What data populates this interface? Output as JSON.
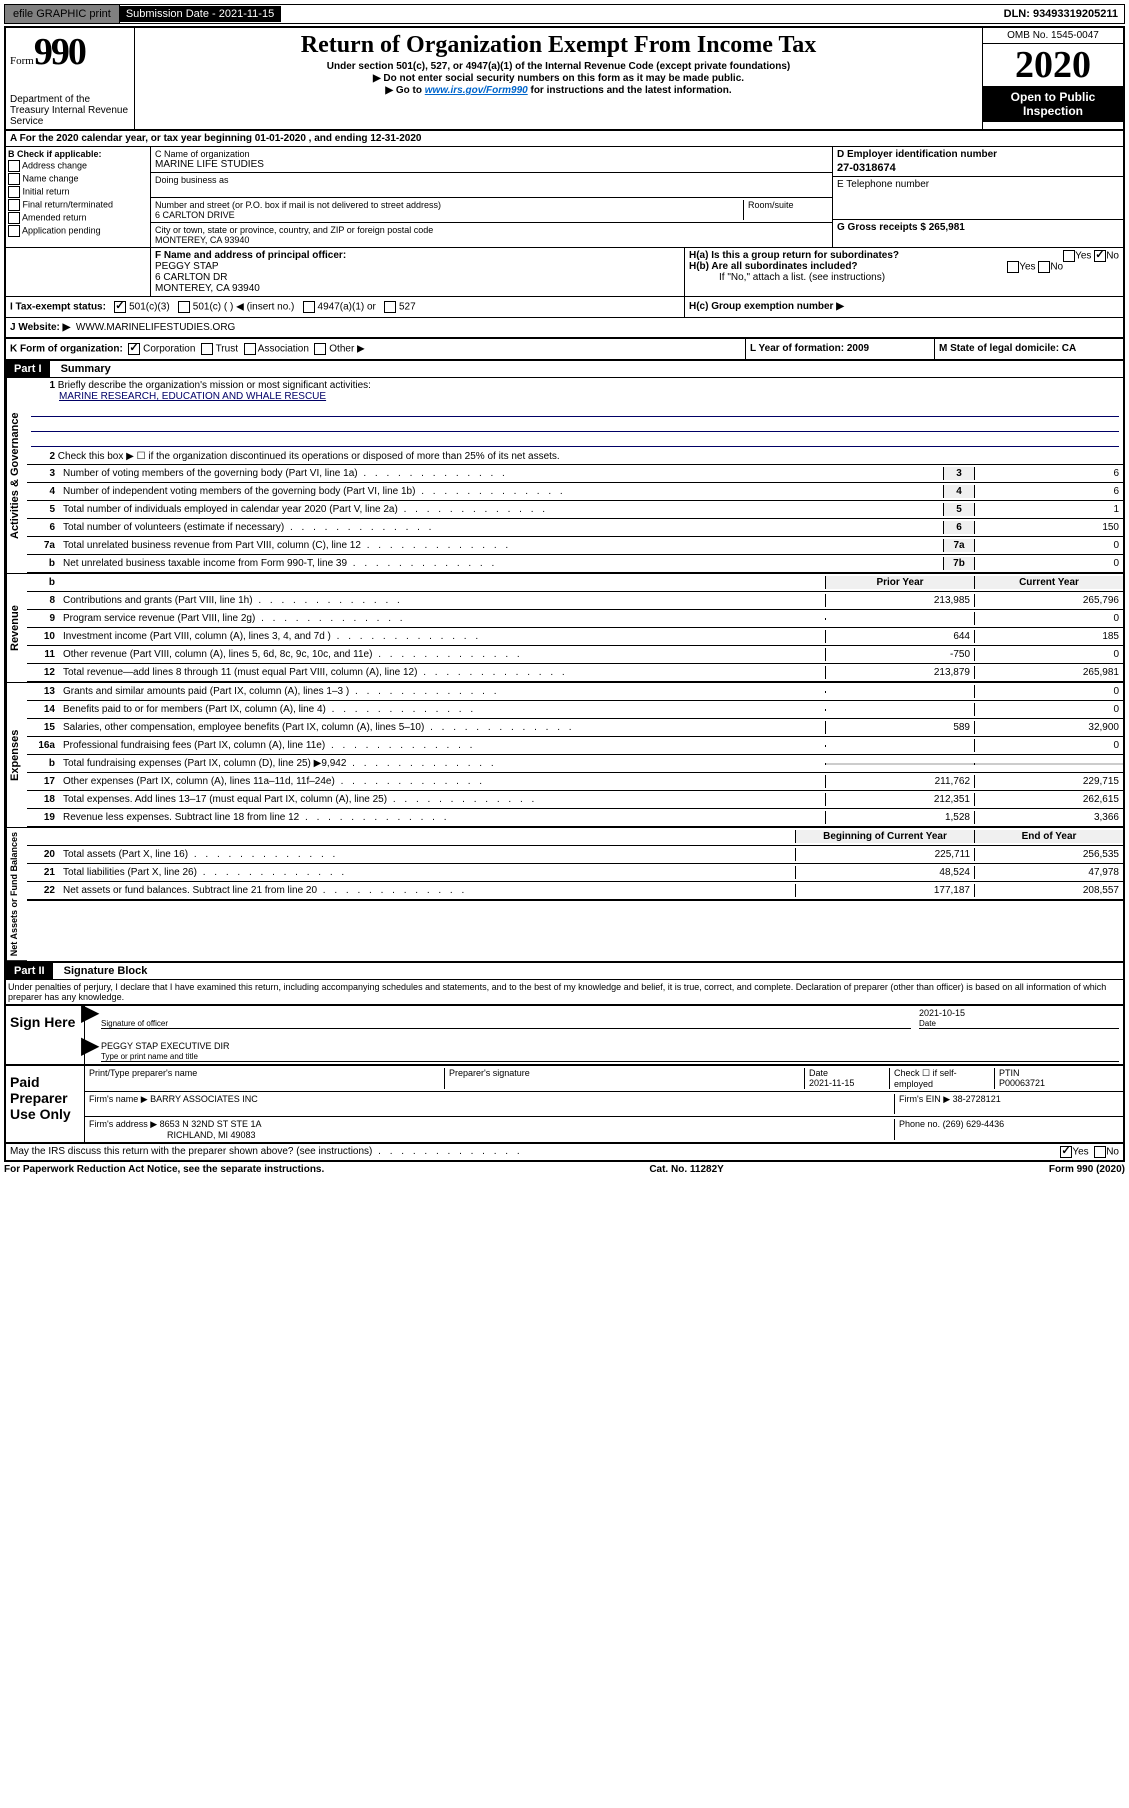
{
  "top_bar": {
    "efile": "efile GRAPHIC print",
    "submission": "Submission Date - 2021-11-15",
    "dln": "DLN: 93493319205211"
  },
  "header": {
    "form_label": "Form",
    "form_number": "990",
    "dept": "Department of the Treasury Internal Revenue Service",
    "title": "Return of Organization Exempt From Income Tax",
    "subtitle": "Under section 501(c), 527, or 4947(a)(1) of the Internal Revenue Code (except private foundations)",
    "warn1": "▶ Do not enter social security numbers on this form as it may be made public.",
    "warn2_prefix": "▶ Go to ",
    "warn2_link": "www.irs.gov/Form990",
    "warn2_suffix": " for instructions and the latest information.",
    "omb": "OMB No. 1545-0047",
    "year": "2020",
    "public": "Open to Public Inspection"
  },
  "section_a": "A For the 2020 calendar year, or tax year beginning 01-01-2020   , and ending 12-31-2020",
  "block_b": {
    "label": "B Check if applicable:",
    "opts": [
      "Address change",
      "Name change",
      "Initial return",
      "Final return/terminated",
      "Amended return",
      "Application pending"
    ]
  },
  "block_c": {
    "name_label": "C Name of organization",
    "name": "MARINE LIFE STUDIES",
    "dba_label": "Doing business as",
    "addr_label": "Number and street (or P.O. box if mail is not delivered to street address)",
    "addr": "6 CARLTON DRIVE",
    "room_label": "Room/suite",
    "city_label": "City or town, state or province, country, and ZIP or foreign postal code",
    "city": "MONTEREY, CA  93940"
  },
  "block_d": {
    "label": "D Employer identification number",
    "value": "27-0318674"
  },
  "block_e": {
    "label": "E Telephone number"
  },
  "block_g": {
    "label": "G Gross receipts $ 265,981"
  },
  "block_f": {
    "label": "F  Name and address of principal officer:",
    "name": "PEGGY STAP",
    "addr1": "6 CARLTON DR",
    "addr2": "MONTEREY, CA  93940"
  },
  "block_h": {
    "ha": "H(a)  Is this a group return for subordinates?",
    "hb": "H(b)  Are all subordinates included?",
    "hb_note": "If \"No,\" attach a list. (see instructions)",
    "hc": "H(c)  Group exemption number ▶"
  },
  "block_i": {
    "label": "I  Tax-exempt status:",
    "o1": "501(c)(3)",
    "o2": "501(c) (   ) ◀ (insert no.)",
    "o3": "4947(a)(1) or",
    "o4": "527"
  },
  "block_j": {
    "label": "J  Website: ▶",
    "value": "WWW.MARINELIFESTUDIES.ORG"
  },
  "block_k": {
    "label": "K Form of organization:",
    "opts": [
      "Corporation",
      "Trust",
      "Association",
      "Other ▶"
    ]
  },
  "block_l": {
    "label": "L Year of formation: 2009"
  },
  "block_m": {
    "label": "M State of legal domicile: CA"
  },
  "part1": {
    "header": "Part I",
    "title": "Summary",
    "line1_label": "Briefly describe the organization's mission or most significant activities:",
    "line1_value": "MARINE RESEARCH, EDUCATION AND WHALE RESCUE",
    "line2": "Check this box ▶ ☐  if the organization discontinued its operations or disposed of more than 25% of its net assets.",
    "lines_gov": [
      {
        "n": "3",
        "t": "Number of voting members of the governing body (Part VI, line 1a)",
        "c": "3",
        "v": "6"
      },
      {
        "n": "4",
        "t": "Number of independent voting members of the governing body (Part VI, line 1b)",
        "c": "4",
        "v": "6"
      },
      {
        "n": "5",
        "t": "Total number of individuals employed in calendar year 2020 (Part V, line 2a)",
        "c": "5",
        "v": "1"
      },
      {
        "n": "6",
        "t": "Total number of volunteers (estimate if necessary)",
        "c": "6",
        "v": "150"
      },
      {
        "n": "7a",
        "t": "Total unrelated business revenue from Part VIII, column (C), line 12",
        "c": "7a",
        "v": "0"
      },
      {
        "n": "b",
        "t": "Net unrelated business taxable income from Form 990-T, line 39",
        "c": "7b",
        "v": "0"
      }
    ],
    "col_headers": {
      "prior": "Prior Year",
      "current": "Current Year",
      "begin": "Beginning of Current Year",
      "end": "End of Year"
    },
    "lines_rev": [
      {
        "n": "8",
        "t": "Contributions and grants (Part VIII, line 1h)",
        "p": "213,985",
        "c": "265,796"
      },
      {
        "n": "9",
        "t": "Program service revenue (Part VIII, line 2g)",
        "p": "",
        "c": "0"
      },
      {
        "n": "10",
        "t": "Investment income (Part VIII, column (A), lines 3, 4, and 7d )",
        "p": "644",
        "c": "185"
      },
      {
        "n": "11",
        "t": "Other revenue (Part VIII, column (A), lines 5, 6d, 8c, 9c, 10c, and 11e)",
        "p": "-750",
        "c": "0"
      },
      {
        "n": "12",
        "t": "Total revenue—add lines 8 through 11 (must equal Part VIII, column (A), line 12)",
        "p": "213,879",
        "c": "265,981"
      }
    ],
    "lines_exp": [
      {
        "n": "13",
        "t": "Grants and similar amounts paid (Part IX, column (A), lines 1–3 )",
        "p": "",
        "c": "0"
      },
      {
        "n": "14",
        "t": "Benefits paid to or for members (Part IX, column (A), line 4)",
        "p": "",
        "c": "0"
      },
      {
        "n": "15",
        "t": "Salaries, other compensation, employee benefits (Part IX, column (A), lines 5–10)",
        "p": "589",
        "c": "32,900"
      },
      {
        "n": "16a",
        "t": "Professional fundraising fees (Part IX, column (A), line 11e)",
        "p": "",
        "c": "0"
      },
      {
        "n": "b",
        "t": "Total fundraising expenses (Part IX, column (D), line 25) ▶9,942",
        "p": null,
        "c": null
      },
      {
        "n": "17",
        "t": "Other expenses (Part IX, column (A), lines 11a–11d, 11f–24e)",
        "p": "211,762",
        "c": "229,715"
      },
      {
        "n": "18",
        "t": "Total expenses. Add lines 13–17 (must equal Part IX, column (A), line 25)",
        "p": "212,351",
        "c": "262,615"
      },
      {
        "n": "19",
        "t": "Revenue less expenses. Subtract line 18 from line 12",
        "p": "1,528",
        "c": "3,366"
      }
    ],
    "lines_net": [
      {
        "n": "20",
        "t": "Total assets (Part X, line 16)",
        "p": "225,711",
        "c": "256,535"
      },
      {
        "n": "21",
        "t": "Total liabilities (Part X, line 26)",
        "p": "48,524",
        "c": "47,978"
      },
      {
        "n": "22",
        "t": "Net assets or fund balances. Subtract line 21 from line 20",
        "p": "177,187",
        "c": "208,557"
      }
    ]
  },
  "part2": {
    "header": "Part II",
    "title": "Signature Block",
    "penalties": "Under penalties of perjury, I declare that I have examined this return, including accompanying schedules and statements, and to the best of my knowledge and belief, it is true, correct, and complete. Declaration of preparer (other than officer) is based on all information of which preparer has any knowledge."
  },
  "sign": {
    "label": "Sign Here",
    "sig_label": "Signature of officer",
    "date": "2021-10-15",
    "date_label": "Date",
    "name": "PEGGY STAP  EXECUTIVE DIR",
    "name_label": "Type or print name and title"
  },
  "preparer": {
    "label": "Paid Preparer Use Only",
    "print_label": "Print/Type preparer's name",
    "sig_label": "Preparer's signature",
    "date_label": "Date",
    "date": "2021-11-15",
    "check_label": "Check ☐ if self-employed",
    "ptin_label": "PTIN",
    "ptin": "P00063721",
    "firm_name_label": "Firm's name   ▶",
    "firm_name": "BARRY ASSOCIATES INC",
    "firm_ein_label": "Firm's EIN ▶",
    "firm_ein": "38-2728121",
    "firm_addr_label": "Firm's address ▶",
    "firm_addr1": "8653 N 32ND ST STE 1A",
    "firm_addr2": "RICHLAND, MI  49083",
    "phone_label": "Phone no.",
    "phone": "(269) 629-4436",
    "discuss": "May the IRS discuss this return with the preparer shown above? (see instructions)"
  },
  "footer": {
    "left": "For Paperwork Reduction Act Notice, see the separate instructions.",
    "center": "Cat. No. 11282Y",
    "right": "Form 990 (2020)"
  }
}
